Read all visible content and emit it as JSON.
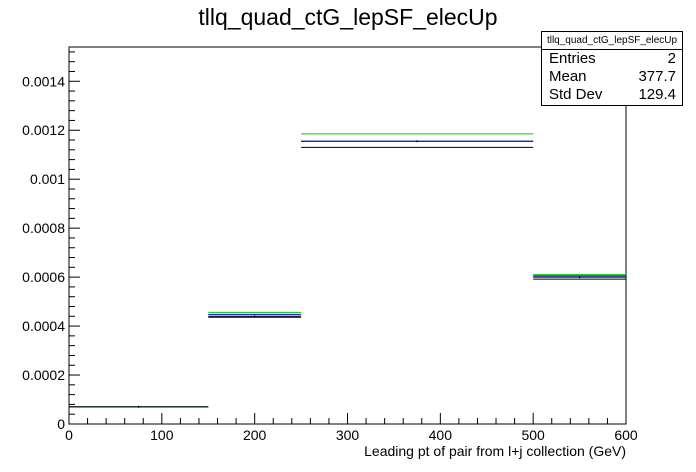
{
  "chart_data": {
    "type": "histogram",
    "title": "tllq_quad_ctG_lepSF_elecUp",
    "xlabel": "Leading pt of pair from l+j collection (GeV)",
    "ylabel": "",
    "xlim": [
      0,
      600
    ],
    "ylim": [
      0,
      0.00154
    ],
    "x_ticks": [
      "0",
      "100",
      "200",
      "300",
      "400",
      "500",
      "600"
    ],
    "y_ticks": [
      "0",
      "0.0002",
      "0.0004",
      "0.0006",
      "0.0008",
      "0.001",
      "0.0012",
      "0.0014"
    ],
    "bins": [
      [
        0,
        150
      ],
      [
        150,
        250
      ],
      [
        250,
        500
      ],
      [
        500,
        600
      ]
    ],
    "series": [
      {
        "color": "#000000",
        "values": [
          7e-05,
          0.00044,
          0.001155,
          0.0006
        ]
      },
      {
        "color": "#0000ff",
        "values": [
          7e-05,
          0.000448,
          0.001155,
          0.000605
        ]
      },
      {
        "color": "#00cc00",
        "values": [
          7e-05,
          0.000456,
          0.001185,
          0.00061
        ]
      },
      {
        "color": "#000000",
        "values": [
          7e-05,
          0.000436,
          0.00113,
          0.000592
        ]
      }
    ],
    "stats": {
      "title": "tllq_quad_ctG_lepSF_elecUp",
      "entries_label": "Entries",
      "entries": "2",
      "mean_label": "Mean",
      "mean": "377.7",
      "stddev_label": "Std Dev",
      "stddev": "129.4"
    }
  }
}
